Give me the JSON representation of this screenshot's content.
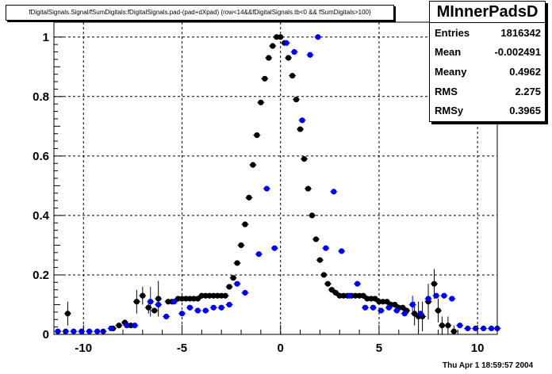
{
  "title": "fDigitalSignals.Signal/fSumDigitals:fDigitalSignals.pad-(pad+dXpad) {row<14&&fDigitalSignals.tb<0 && fSumDigitals>100}",
  "stats": {
    "name": "MInnerPadsD",
    "rows": [
      {
        "label": "Entries",
        "value": "1816342"
      },
      {
        "label": "Mean",
        "value": "-0.002491"
      },
      {
        "label": "Meany",
        "value": "0.4962"
      },
      {
        "label": "RMS",
        "value": "2.275"
      },
      {
        "label": "RMSy",
        "value": "0.3965"
      }
    ]
  },
  "datestamp": "Thu Apr  1 18:59:57 2004",
  "colors": {
    "series_black": "#000000",
    "series_blue": "#0000ee",
    "grid": "#000000"
  },
  "chart_data": {
    "type": "scatter",
    "xlim": [
      -11.5,
      11
    ],
    "ylim": [
      0,
      1.05
    ],
    "x_ticks": [
      -10,
      -5,
      0,
      5,
      10
    ],
    "y_ticks": [
      0,
      0.2,
      0.4,
      0.6,
      0.8,
      1
    ],
    "grid": true,
    "series": [
      {
        "color": "black",
        "points": [
          {
            "x": -10.8,
            "y": 0.07,
            "err": 0.04
          },
          {
            "x": -8.5,
            "y": 0.02
          },
          {
            "x": -8.2,
            "y": 0.03
          },
          {
            "x": -7.9,
            "y": 0.04
          },
          {
            "x": -7.6,
            "y": 0.03
          },
          {
            "x": -7.3,
            "y": 0.11,
            "err": 0.04
          },
          {
            "x": -7.0,
            "y": 0.13,
            "err": 0.03
          },
          {
            "x": -6.7,
            "y": 0.09,
            "err": 0.02
          },
          {
            "x": -6.4,
            "y": 0.08
          },
          {
            "x": -6.2,
            "y": 0.12,
            "err": 0.06
          },
          {
            "x": -5.7,
            "y": 0.11
          },
          {
            "x": -5.5,
            "y": 0.11
          },
          {
            "x": -5.2,
            "y": 0.12
          },
          {
            "x": -5.0,
            "y": 0.12
          },
          {
            "x": -4.8,
            "y": 0.12
          },
          {
            "x": -4.6,
            "y": 0.12
          },
          {
            "x": -4.4,
            "y": 0.12
          },
          {
            "x": -4.2,
            "y": 0.12
          },
          {
            "x": -4.0,
            "y": 0.13
          },
          {
            "x": -3.8,
            "y": 0.13
          },
          {
            "x": -3.6,
            "y": 0.13
          },
          {
            "x": -3.4,
            "y": 0.13
          },
          {
            "x": -3.2,
            "y": 0.13
          },
          {
            "x": -3.0,
            "y": 0.13
          },
          {
            "x": -2.8,
            "y": 0.13
          },
          {
            "x": -2.6,
            "y": 0.16
          },
          {
            "x": -2.4,
            "y": 0.19
          },
          {
            "x": -2.2,
            "y": 0.24
          },
          {
            "x": -2.0,
            "y": 0.3
          },
          {
            "x": -1.8,
            "y": 0.37
          },
          {
            "x": -1.6,
            "y": 0.46
          },
          {
            "x": -1.4,
            "y": 0.57
          },
          {
            "x": -1.2,
            "y": 0.67
          },
          {
            "x": -1.0,
            "y": 0.78
          },
          {
            "x": -0.8,
            "y": 0.86
          },
          {
            "x": -0.6,
            "y": 0.93
          },
          {
            "x": -0.4,
            "y": 0.97
          },
          {
            "x": -0.2,
            "y": 1.0
          },
          {
            "x": 0.0,
            "y": 1.0
          },
          {
            "x": 0.2,
            "y": 0.98
          },
          {
            "x": 0.4,
            "y": 0.93
          },
          {
            "x": 0.6,
            "y": 0.87
          },
          {
            "x": 0.8,
            "y": 0.79
          },
          {
            "x": 1.0,
            "y": 0.69
          },
          {
            "x": 1.2,
            "y": 0.59
          },
          {
            "x": 1.4,
            "y": 0.49
          },
          {
            "x": 1.6,
            "y": 0.4
          },
          {
            "x": 1.8,
            "y": 0.32
          },
          {
            "x": 2.0,
            "y": 0.25
          },
          {
            "x": 2.2,
            "y": 0.2
          },
          {
            "x": 2.4,
            "y": 0.17
          },
          {
            "x": 2.6,
            "y": 0.15
          },
          {
            "x": 2.8,
            "y": 0.14
          },
          {
            "x": 3.0,
            "y": 0.13
          },
          {
            "x": 3.2,
            "y": 0.13
          },
          {
            "x": 3.4,
            "y": 0.13
          },
          {
            "x": 3.6,
            "y": 0.13
          },
          {
            "x": 3.8,
            "y": 0.13
          },
          {
            "x": 4.0,
            "y": 0.13
          },
          {
            "x": 4.2,
            "y": 0.13
          },
          {
            "x": 4.4,
            "y": 0.12
          },
          {
            "x": 4.6,
            "y": 0.12
          },
          {
            "x": 4.8,
            "y": 0.12
          },
          {
            "x": 5.0,
            "y": 0.11
          },
          {
            "x": 5.2,
            "y": 0.11
          },
          {
            "x": 5.4,
            "y": 0.11
          },
          {
            "x": 5.6,
            "y": 0.1
          },
          {
            "x": 5.8,
            "y": 0.1
          },
          {
            "x": 6.0,
            "y": 0.09
          },
          {
            "x": 6.2,
            "y": 0.09
          },
          {
            "x": 6.4,
            "y": 0.08
          },
          {
            "x": 6.8,
            "y": 0.07,
            "err": 0.04
          },
          {
            "x": 7.0,
            "y": 0.06,
            "err": 0.05
          },
          {
            "x": 7.2,
            "y": 0.06,
            "err": 0.05
          },
          {
            "x": 7.5,
            "y": 0.11,
            "err": 0.06
          },
          {
            "x": 7.8,
            "y": 0.17,
            "err": 0.05
          },
          {
            "x": 8.0,
            "y": 0.08,
            "err": 0.04
          },
          {
            "x": 8.2,
            "y": 0.03,
            "err": 0.03
          },
          {
            "x": 8.5,
            "y": 0.03,
            "err": 0.03
          },
          {
            "x": 8.8,
            "y": 0.01,
            "err": 0.02
          }
        ]
      },
      {
        "color": "blue",
        "points": [
          {
            "x": -11.3,
            "y": 0.01
          },
          {
            "x": -10.9,
            "y": 0.01
          },
          {
            "x": -10.5,
            "y": 0.01
          },
          {
            "x": -10.1,
            "y": 0.01
          },
          {
            "x": -9.7,
            "y": 0.01
          },
          {
            "x": -9.3,
            "y": 0.01
          },
          {
            "x": -9.0,
            "y": 0.01
          },
          {
            "x": -8.6,
            "y": 0.02
          },
          {
            "x": -7.8,
            "y": 0.03
          },
          {
            "x": -7.4,
            "y": 0.03
          },
          {
            "x": -6.6,
            "y": 0.11,
            "err": 0.05
          },
          {
            "x": -6.2,
            "y": 0.1
          },
          {
            "x": -5.8,
            "y": 0.06
          },
          {
            "x": -5.4,
            "y": 0.11
          },
          {
            "x": -5.0,
            "y": 0.07
          },
          {
            "x": -4.6,
            "y": 0.09
          },
          {
            "x": -4.2,
            "y": 0.08
          },
          {
            "x": -3.8,
            "y": 0.08
          },
          {
            "x": -3.4,
            "y": 0.09
          },
          {
            "x": -3.0,
            "y": 0.09
          },
          {
            "x": -2.6,
            "y": 0.1
          },
          {
            "x": -2.2,
            "y": 0.17
          },
          {
            "x": -1.8,
            "y": 0.14
          },
          {
            "x": -1.1,
            "y": 0.27
          },
          {
            "x": -0.7,
            "y": 0.49
          },
          {
            "x": -0.3,
            "y": 0.29
          },
          {
            "x": 0.3,
            "y": 0.98
          },
          {
            "x": 0.7,
            "y": 0.95
          },
          {
            "x": 1.1,
            "y": 0.72
          },
          {
            "x": 1.5,
            "y": 0.94
          },
          {
            "x": 1.9,
            "y": 1.0
          },
          {
            "x": 2.3,
            "y": 0.29
          },
          {
            "x": 2.7,
            "y": 0.48
          },
          {
            "x": 3.1,
            "y": 0.28
          },
          {
            "x": 3.5,
            "y": 0.13
          },
          {
            "x": 3.9,
            "y": 0.17
          },
          {
            "x": 4.3,
            "y": 0.09
          },
          {
            "x": 4.7,
            "y": 0.09
          },
          {
            "x": 5.1,
            "y": 0.08
          },
          {
            "x": 5.5,
            "y": 0.09
          },
          {
            "x": 5.9,
            "y": 0.08
          },
          {
            "x": 6.3,
            "y": 0.07
          },
          {
            "x": 6.7,
            "y": 0.1,
            "err": 0.03
          },
          {
            "x": 7.1,
            "y": 0.07
          },
          {
            "x": 7.5,
            "y": 0.12
          },
          {
            "x": 7.9,
            "y": 0.13
          },
          {
            "x": 8.3,
            "y": 0.13
          },
          {
            "x": 8.7,
            "y": 0.12
          },
          {
            "x": 9.1,
            "y": 0.03
          },
          {
            "x": 9.5,
            "y": 0.02
          },
          {
            "x": 9.9,
            "y": 0.02
          },
          {
            "x": 10.3,
            "y": 0.02
          },
          {
            "x": 10.7,
            "y": 0.02
          },
          {
            "x": 11.0,
            "y": 0.02
          }
        ]
      }
    ]
  }
}
